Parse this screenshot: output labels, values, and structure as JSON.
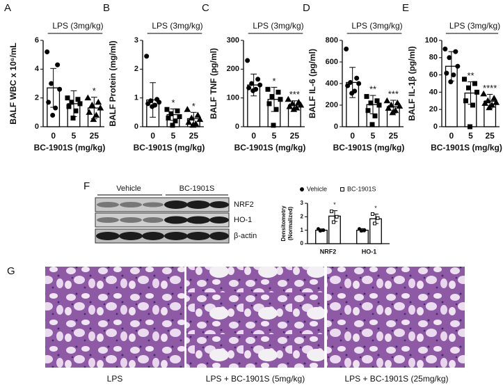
{
  "chart_data": [
    {
      "type": "bar",
      "annotation": "LPS (3mg/kg)",
      "ylabel": "BALF WBC x 10⁶/mL",
      "xlabel": "BC-1901S (mg/kg)",
      "categories": [
        "0",
        "5",
        "25"
      ],
      "values": [
        2.7,
        1.6,
        1.3
      ],
      "errors": [
        1.35,
        0.9,
        0.75
      ],
      "points": [
        [
          5.2,
          4.3,
          3.0,
          2.6,
          1.7,
          1.3,
          0.8
        ],
        [
          2.0,
          1.9,
          1.7,
          1.6,
          1.4,
          1.1,
          0.6
        ],
        [
          2.0,
          1.7,
          1.5,
          1.3,
          1.0,
          0.8,
          0.5
        ]
      ],
      "markers": [
        "circle",
        "square",
        "triangle"
      ],
      "significance": [
        null,
        null,
        "*"
      ],
      "color": "#ffffff",
      "ylim": [
        0,
        6
      ],
      "yticks": [
        0,
        2,
        4,
        6
      ]
    },
    {
      "type": "bar",
      "annotation": "LPS (3mg/kg)",
      "ylabel": "BALF Protein (mg/ml)",
      "xlabel": "BC-1901S (mg/kg)",
      "categories": [
        "0",
        "5",
        "25"
      ],
      "values": [
        0.93,
        0.42,
        0.28
      ],
      "errors": [
        0.6,
        0.2,
        0.22
      ],
      "points": [
        [
          2.45,
          0.95,
          0.9,
          0.85,
          0.8,
          0.75,
          0.7
        ],
        [
          0.6,
          0.55,
          0.45,
          0.35,
          0.3,
          0.2,
          0.05
        ],
        [
          0.6,
          0.4,
          0.3,
          0.25,
          0.15,
          0.1,
          0.05
        ]
      ],
      "markers": [
        "circle",
        "square",
        "triangle"
      ],
      "significance": [
        null,
        "*",
        "*"
      ],
      "color": "#ffffff",
      "ylim": [
        0,
        3
      ],
      "yticks": [
        0,
        1,
        2,
        3
      ]
    },
    {
      "type": "bar",
      "annotation": "LPS (3mg/kg)",
      "ylabel": "BALF TNF (pg/ml)",
      "xlabel": "BC-1901S (mg/kg)",
      "categories": [
        "0",
        "5",
        "25"
      ],
      "values": [
        145,
        95,
        75
      ],
      "errors": [
        38,
        42,
        15
      ],
      "points": [
        [
          230,
          165,
          150,
          145,
          135,
          130,
          125
        ],
        [
          130,
          120,
          105,
          95,
          80,
          60,
          5
        ],
        [
          95,
          85,
          80,
          75,
          70,
          65,
          60
        ]
      ],
      "markers": [
        "circle",
        "square",
        "triangle"
      ],
      "significance": [
        null,
        "*",
        "***"
      ],
      "color": "#ffffff",
      "ylim": [
        0,
        300
      ],
      "yticks": [
        0,
        100,
        200,
        300
      ]
    },
    {
      "type": "bar",
      "annotation": "LPS (3mg/kg)",
      "ylabel": "BALF IL-6 (pg/ml)",
      "xlabel": "BC-1901S (mg/kg)",
      "categories": [
        "0",
        "5",
        "25"
      ],
      "values": [
        410,
        205,
        185
      ],
      "errors": [
        140,
        85,
        60
      ],
      "points": [
        [
          720,
          450,
          410,
          400,
          380,
          330,
          310
        ],
        [
          280,
          240,
          220,
          200,
          150,
          100,
          20
        ],
        [
          240,
          220,
          200,
          190,
          170,
          150,
          130
        ]
      ],
      "markers": [
        "circle",
        "square",
        "triangle"
      ],
      "significance": [
        null,
        "**",
        "***"
      ],
      "color": "#ffffff",
      "ylim": [
        0,
        800
      ],
      "yticks": [
        0,
        200,
        400,
        600,
        800
      ]
    },
    {
      "type": "bar",
      "annotation": "LPS (3mg/kg)",
      "ylabel": "BALF IL-1β (pg/ml)",
      "xlabel": "BC-1901S (mg/kg)",
      "categories": [
        "0",
        "5",
        "25"
      ],
      "values": [
        70,
        39,
        29.5
      ],
      "errors": [
        17,
        13,
        8
      ],
      "points": [
        [
          90,
          87,
          80,
          70,
          62,
          60,
          52
        ],
        [
          55,
          50,
          45,
          40,
          30,
          25,
          0
        ],
        [
          38,
          33,
          30,
          28,
          27,
          25,
          22
        ]
      ],
      "markers": [
        "circle",
        "square",
        "triangle"
      ],
      "significance": [
        null,
        "**",
        "****"
      ],
      "color": "#ffffff",
      "ylim": [
        0,
        100
      ],
      "yticks": [
        0,
        20,
        40,
        60,
        80,
        100
      ]
    },
    {
      "type": "bar",
      "ylabel": [
        "Densitometry",
        "(Normalized)"
      ],
      "categories": [
        "NRF2",
        "HO-1"
      ],
      "series": [
        {
          "name": "Vehicle",
          "color": "#ffffff",
          "marker": "circle",
          "values": [
            1,
            1
          ],
          "errors": [
            0.1,
            0.12
          ],
          "points": [
            [
              1.1,
              1.0,
              0.95
            ],
            [
              1.1,
              1.0,
              0.95
            ]
          ]
        },
        {
          "name": "BC-1901S",
          "color": "#ffffff",
          "marker": "open-square",
          "values": [
            2.05,
            1.85
          ],
          "errors": [
            0.4,
            0.35
          ],
          "points": [
            [
              2.4,
              2.0,
              1.6
            ],
            [
              2.2,
              1.9,
              1.5
            ]
          ],
          "significance": [
            "*",
            "*"
          ]
        }
      ],
      "ylim": [
        0,
        3
      ],
      "yticks": [
        0,
        1,
        2,
        3
      ]
    }
  ],
  "panel_labels": [
    "A",
    "B",
    "C",
    "D",
    "E",
    "F",
    "G"
  ],
  "blot": {
    "groups": [
      "Vehicle",
      "BC-1901S"
    ],
    "rows": [
      "NRF2",
      "HO-1",
      "β-actin"
    ]
  },
  "histology": {
    "captions": [
      "LPS",
      "LPS + BC-1901S (5mg/kg)",
      "LPS + BC-1901S (25mg/kg)"
    ]
  }
}
